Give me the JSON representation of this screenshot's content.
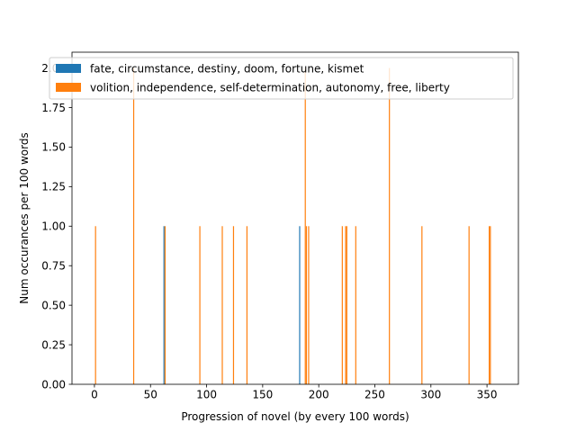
{
  "chart_data": {
    "type": "bar",
    "xlabel": "Progression of novel (by every 100 words)",
    "ylabel": "Num occurances per 100 words",
    "xlim": [
      -20,
      378
    ],
    "ylim": [
      0,
      2.1
    ],
    "xticks": [
      0,
      50,
      100,
      150,
      200,
      250,
      300,
      350
    ],
    "yticks": [
      0.0,
      0.25,
      0.5,
      0.75,
      1.0,
      1.25,
      1.5,
      1.75,
      2.0
    ],
    "ytick_labels": [
      "0.00",
      "0.25",
      "0.50",
      "0.75",
      "1.00",
      "1.25",
      "1.50",
      "1.75",
      "2.00"
    ],
    "legend_position": "upper-left",
    "series": [
      {
        "name": "fate, circumstance, destiny, doom, fortune, kismet",
        "color": "#1f77b4",
        "points": [
          {
            "x": 62,
            "y": 1
          },
          {
            "x": 183,
            "y": 1
          }
        ]
      },
      {
        "name": "volition, independence, self-determination, autonomy, free, liberty",
        "color": "#ff7f0e",
        "points": [
          {
            "x": 1,
            "y": 1
          },
          {
            "x": 35,
            "y": 2
          },
          {
            "x": 63,
            "y": 1
          },
          {
            "x": 94,
            "y": 1
          },
          {
            "x": 114,
            "y": 1
          },
          {
            "x": 124,
            "y": 1
          },
          {
            "x": 136,
            "y": 1
          },
          {
            "x": 188,
            "y": 2
          },
          {
            "x": 189,
            "y": 1
          },
          {
            "x": 191,
            "y": 1
          },
          {
            "x": 221,
            "y": 1
          },
          {
            "x": 224,
            "y": 1
          },
          {
            "x": 225,
            "y": 1
          },
          {
            "x": 233,
            "y": 1
          },
          {
            "x": 263,
            "y": 2
          },
          {
            "x": 292,
            "y": 1
          },
          {
            "x": 334,
            "y": 1
          },
          {
            "x": 352,
            "y": 1
          },
          {
            "x": 353,
            "y": 1
          }
        ]
      }
    ]
  }
}
